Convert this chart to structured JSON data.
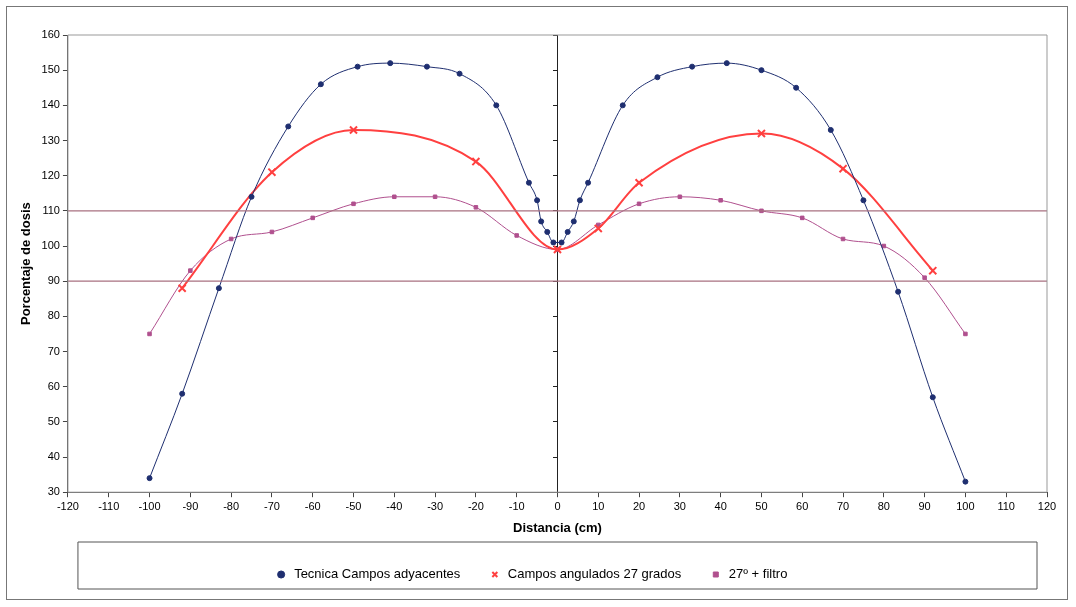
{
  "chart_data": {
    "type": "line",
    "xlabel": "Distancia (cm)",
    "ylabel": "Porcentaje de dosis",
    "xlim": [
      -120,
      120
    ],
    "xticks": [
      -120,
      -110,
      -100,
      -90,
      -80,
      -70,
      -60,
      -50,
      -40,
      -30,
      -20,
      -10,
      0,
      10,
      20,
      30,
      40,
      50,
      60,
      70,
      80,
      90,
      100,
      110,
      120
    ],
    "ylim": [
      30,
      160
    ],
    "yticks": [
      30,
      40,
      50,
      60,
      70,
      80,
      90,
      100,
      110,
      120,
      130,
      140,
      150,
      160
    ],
    "grid": false,
    "legend": "bottom",
    "ref_lines": [
      {
        "axis": "y",
        "value": 110,
        "color": "#a87080"
      },
      {
        "axis": "y",
        "value": 90,
        "color": "#a87080"
      }
    ],
    "series": [
      {
        "name": "Tecnica Campos adyacentes",
        "color": "#1f2f70",
        "marker": "circle",
        "x": [
          -100,
          -92,
          -83,
          -75,
          -66,
          -58,
          -49,
          -41,
          -32,
          -24,
          -15,
          -7,
          -5,
          -4,
          -2.5,
          -1,
          1,
          2.5,
          4,
          5.5,
          7.5,
          16,
          24.5,
          33,
          41.5,
          50,
          58.5,
          67,
          75,
          83.5,
          92,
          100
        ],
        "values": [
          34,
          58,
          88,
          114,
          134,
          146,
          151,
          152,
          151,
          149,
          140,
          118,
          113,
          107,
          104,
          101,
          101,
          104,
          107,
          113,
          118,
          140,
          148,
          151,
          152,
          150,
          145,
          133,
          113,
          87,
          57,
          33
        ]
      },
      {
        "name": "Campos angulados 27 grados",
        "color": "#ff4040",
        "marker": "cross",
        "x": [
          -92,
          -70,
          -50,
          -20,
          0,
          10,
          20,
          50,
          70,
          92
        ],
        "values": [
          88,
          121,
          133,
          124,
          99,
          105,
          118,
          132,
          122,
          93
        ]
      },
      {
        "name": "27º + filtro",
        "color": "#b0508e",
        "marker": "square",
        "x": [
          -100,
          -90,
          -80,
          -70,
          -60,
          -50,
          -40,
          -30,
          -20,
          -10,
          0,
          10,
          20,
          30,
          40,
          50,
          60,
          70,
          80,
          90,
          100
        ],
        "values": [
          75,
          93,
          102,
          104,
          108,
          112,
          114,
          114,
          111,
          103,
          99,
          106,
          112,
          114,
          113,
          110,
          108,
          102,
          100,
          91,
          75
        ]
      }
    ]
  }
}
